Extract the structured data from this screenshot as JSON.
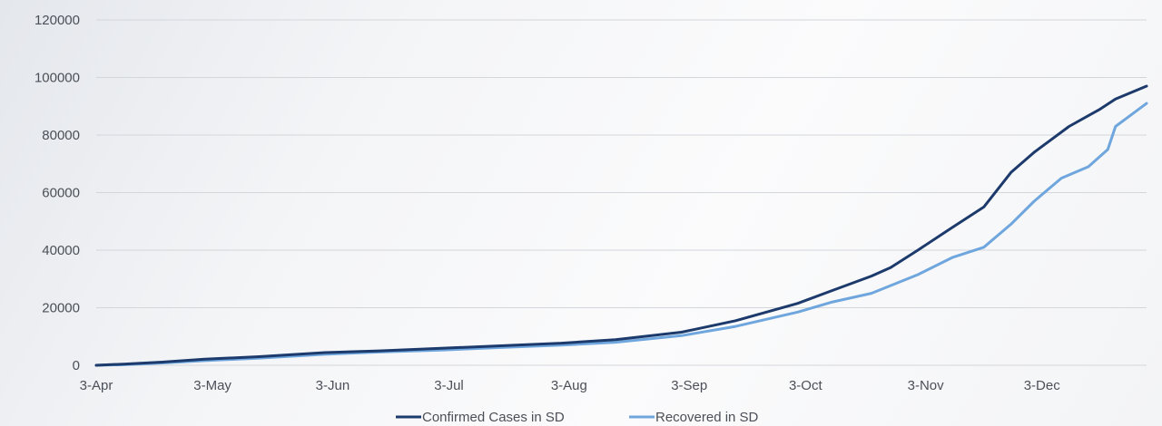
{
  "chart_data": {
    "type": "line",
    "title": "",
    "xlabel": "",
    "ylabel": "",
    "ylim": [
      0,
      120000
    ],
    "yticks": [
      0,
      20000,
      40000,
      60000,
      80000,
      100000,
      120000
    ],
    "ytick_labels": [
      "0",
      "20000",
      "40000",
      "60000",
      "80000",
      "100000",
      "120000"
    ],
    "xlim": [
      "2020-04-03",
      "2020-12-30"
    ],
    "xticks": [
      "2020-04-03",
      "2020-05-03",
      "2020-06-03",
      "2020-07-03",
      "2020-08-03",
      "2020-09-03",
      "2020-10-03",
      "2020-11-03",
      "2020-12-03"
    ],
    "xtick_labels": [
      "3-Apr",
      "3-May",
      "3-Jun",
      "3-Jul",
      "3-Aug",
      "3-Sep",
      "3-Oct",
      "3-Nov",
      "3-Dec"
    ],
    "grid": true,
    "legend_position": "bottom",
    "series": [
      {
        "name": "Confirmed Cases in SD",
        "color": "#1c3a6b",
        "points": [
          [
            "2020-04-10",
            400
          ],
          [
            "2020-04-20",
            1100
          ],
          [
            "2020-05-01",
            2100
          ],
          [
            "2020-05-15",
            3000
          ],
          [
            "2020-06-01",
            4400
          ],
          [
            "2020-06-15",
            5000
          ],
          [
            "2020-07-01",
            5900
          ],
          [
            "2020-07-15",
            6700
          ],
          [
            "2020-08-01",
            7700
          ],
          [
            "2020-08-15",
            8900
          ],
          [
            "2020-09-01",
            11500
          ],
          [
            "2020-09-15",
            15500
          ],
          [
            "2020-10-01",
            21500
          ],
          [
            "2020-10-10",
            26000
          ],
          [
            "2020-10-20",
            31000
          ],
          [
            "2020-10-25",
            34000
          ],
          [
            "2020-11-01",
            40000
          ],
          [
            "2020-11-10",
            48000
          ],
          [
            "2020-11-18",
            55000
          ],
          [
            "2020-11-25",
            67000
          ],
          [
            "2020-12-01",
            74000
          ],
          [
            "2020-12-05",
            78000
          ],
          [
            "2020-12-10",
            83000
          ],
          [
            "2020-12-18",
            89000
          ],
          [
            "2020-12-22",
            92500
          ],
          [
            "2020-12-30",
            97000
          ]
        ]
      },
      {
        "name": "Recovered in SD",
        "color": "#6fa6dd",
        "points": [
          [
            "2020-04-10",
            200
          ],
          [
            "2020-04-20",
            800
          ],
          [
            "2020-05-01",
            1600
          ],
          [
            "2020-05-15",
            2500
          ],
          [
            "2020-06-01",
            3800
          ],
          [
            "2020-06-15",
            4600
          ],
          [
            "2020-07-01",
            5300
          ],
          [
            "2020-07-15",
            6100
          ],
          [
            "2020-08-01",
            7000
          ],
          [
            "2020-08-15",
            8000
          ],
          [
            "2020-09-01",
            10300
          ],
          [
            "2020-09-15",
            13500
          ],
          [
            "2020-10-01",
            18500
          ],
          [
            "2020-10-10",
            22000
          ],
          [
            "2020-10-20",
            25000
          ],
          [
            "2020-11-01",
            31500
          ],
          [
            "2020-11-10",
            37500
          ],
          [
            "2020-11-18",
            41000
          ],
          [
            "2020-11-25",
            49000
          ],
          [
            "2020-12-01",
            57000
          ],
          [
            "2020-12-08",
            65000
          ],
          [
            "2020-12-15",
            69000
          ],
          [
            "2020-12-20",
            75000
          ],
          [
            "2020-12-22",
            83000
          ],
          [
            "2020-12-30",
            91000
          ]
        ]
      }
    ]
  }
}
